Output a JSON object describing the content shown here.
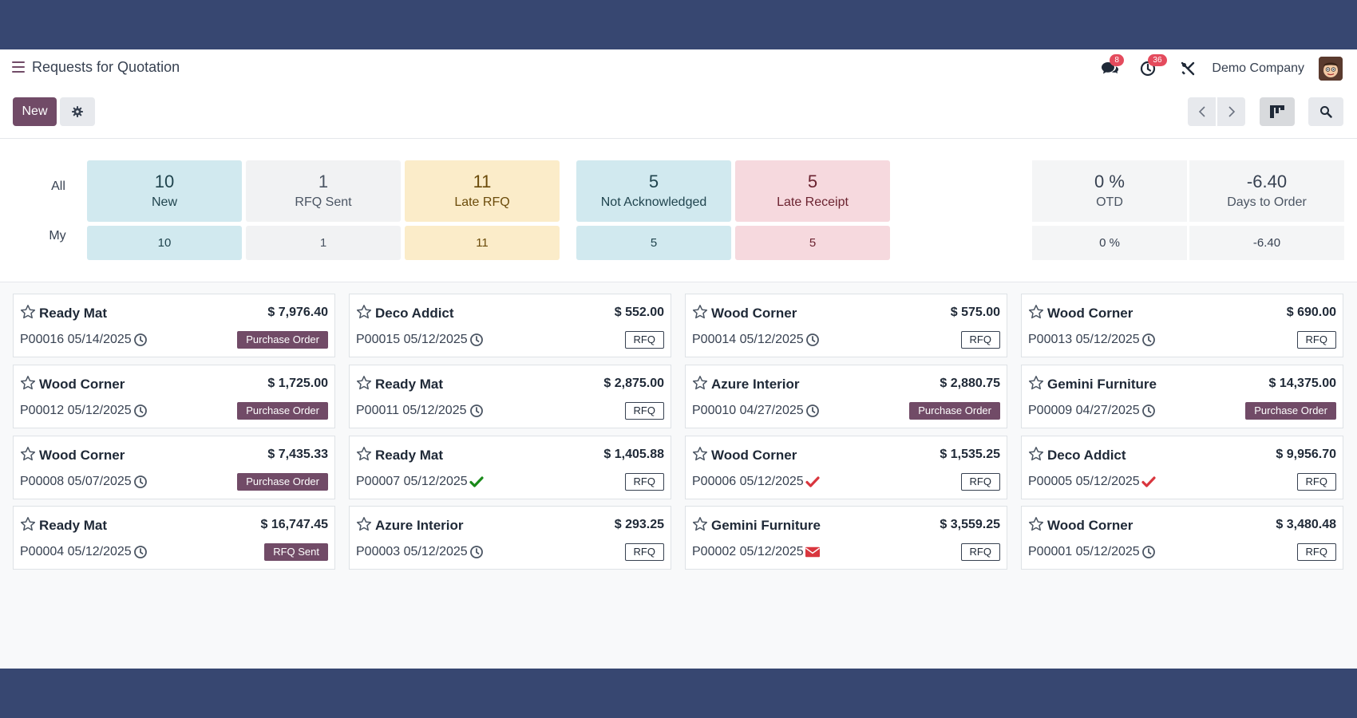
{
  "navbar": {
    "title": "Requests for Quotation",
    "messages_badge": "8",
    "activities_badge": "36",
    "company": "Demo Company"
  },
  "control": {
    "new_label": "New"
  },
  "dashboard": {
    "row_all": "All",
    "row_my": "My",
    "tiles": [
      {
        "all": "10",
        "label": "New",
        "my": "10"
      },
      {
        "all": "1",
        "label": "RFQ Sent",
        "my": "1"
      },
      {
        "all": "11",
        "label": "Late RFQ",
        "my": "11"
      },
      {
        "all": "5",
        "label": "Not Acknowledged",
        "my": "5"
      },
      {
        "all": "5",
        "label": "Late Receipt",
        "my": "5"
      }
    ],
    "stats": [
      {
        "all": "0 %",
        "label": "OTD",
        "my": "0 %"
      },
      {
        "all": "-6.40",
        "label": "Days to Order",
        "my": "-6.40"
      }
    ]
  },
  "cards": [
    {
      "partner": "Ready Mat",
      "amount": "$ 7,976.40",
      "ref": "P00016 05/14/2025",
      "activity": "clock-icon",
      "status": "Purchase Order",
      "status_style": "filled"
    },
    {
      "partner": "Deco Addict",
      "amount": "$ 552.00",
      "ref": "P00015 05/12/2025",
      "activity": "clock-icon",
      "status": "RFQ",
      "status_style": "outline"
    },
    {
      "partner": "Wood Corner",
      "amount": "$ 575.00",
      "ref": "P00014 05/12/2025",
      "activity": "clock-icon",
      "status": "RFQ",
      "status_style": "outline"
    },
    {
      "partner": "Wood Corner",
      "amount": "$ 690.00",
      "ref": "P00013 05/12/2025",
      "activity": "clock-icon",
      "status": "RFQ",
      "status_style": "outline"
    },
    {
      "partner": "Wood Corner",
      "amount": "$ 1,725.00",
      "ref": "P00012 05/12/2025",
      "activity": "clock-icon",
      "status": "Purchase Order",
      "status_style": "filled"
    },
    {
      "partner": "Ready Mat",
      "amount": "$ 2,875.00",
      "ref": "P00011 05/12/2025",
      "activity": "clock-icon",
      "status": "RFQ",
      "status_style": "outline"
    },
    {
      "partner": "Azure Interior",
      "amount": "$ 2,880.75",
      "ref": "P00010 04/27/2025",
      "activity": "clock-icon",
      "status": "Purchase Order",
      "status_style": "filled"
    },
    {
      "partner": "Gemini Furniture",
      "amount": "$ 14,375.00",
      "ref": "P00009 04/27/2025",
      "activity": "clock-icon",
      "status": "Purchase Order",
      "status_style": "filled"
    },
    {
      "partner": "Wood Corner",
      "amount": "$ 7,435.33",
      "ref": "P00008 05/07/2025",
      "activity": "clock-icon",
      "status": "Purchase Order",
      "status_style": "filled"
    },
    {
      "partner": "Ready Mat",
      "amount": "$ 1,405.88",
      "ref": "P00007 05/12/2025",
      "activity": "check-green-icon",
      "status": "RFQ",
      "status_style": "outline"
    },
    {
      "partner": "Wood Corner",
      "amount": "$ 1,535.25",
      "ref": "P00006 05/12/2025",
      "activity": "check-red-icon",
      "status": "RFQ",
      "status_style": "outline"
    },
    {
      "partner": "Deco Addict",
      "amount": "$ 9,956.70",
      "ref": "P00005 05/12/2025",
      "activity": "check-red-icon",
      "status": "RFQ",
      "status_style": "outline"
    },
    {
      "partner": "Ready Mat",
      "amount": "$ 16,747.45",
      "ref": "P00004 05/12/2025",
      "activity": "clock-icon",
      "status": "RFQ Sent",
      "status_style": "filled"
    },
    {
      "partner": "Azure Interior",
      "amount": "$ 293.25",
      "ref": "P00003 05/12/2025",
      "activity": "clock-icon",
      "status": "RFQ",
      "status_style": "outline"
    },
    {
      "partner": "Gemini Furniture",
      "amount": "$ 3,559.25",
      "ref": "P00002 05/12/2025",
      "activity": "envelope-icon",
      "status": "RFQ",
      "status_style": "outline"
    },
    {
      "partner": "Wood Corner",
      "amount": "$ 3,480.48",
      "ref": "P00001 05/12/2025",
      "activity": "clock-icon",
      "status": "RFQ",
      "status_style": "outline"
    }
  ],
  "colors": {
    "brand": "#714b67",
    "frame": "#374771",
    "tile_blue": "#d1e9ef",
    "tile_yellow": "#fbecc9",
    "tile_pink": "#f6d9de",
    "activity_ok": "#1a8a1a",
    "activity_overdue": "#d9363e"
  }
}
